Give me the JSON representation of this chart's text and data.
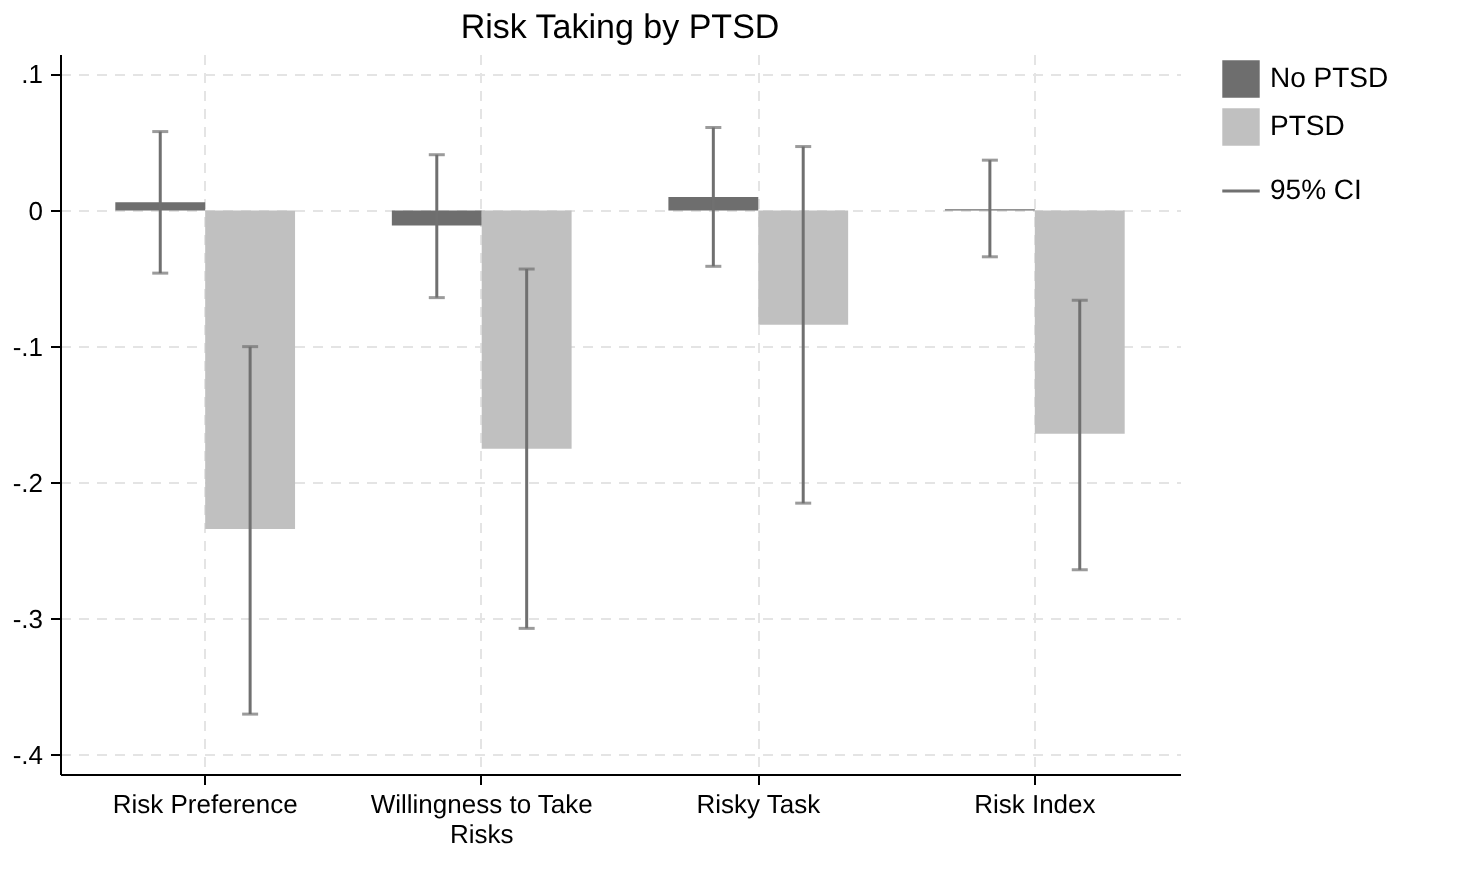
{
  "chart_data": {
    "type": "bar",
    "title": "Risk Taking by PTSD",
    "categories": [
      "Risk Preference",
      "Willingness to Take Risks",
      "Risky Task",
      "Risk Index"
    ],
    "series": [
      {
        "name": "No PTSD",
        "color": "#6e6e6e",
        "values": [
          0.006,
          -0.011,
          0.01,
          0.001
        ],
        "errors": [
          [
            -0.046,
            0.058
          ],
          [
            -0.064,
            0.041
          ],
          [
            -0.041,
            0.061
          ],
          [
            -0.034,
            0.037
          ]
        ]
      },
      {
        "name": "PTSD",
        "color": "#c0c0c0",
        "values": [
          -0.234,
          -0.175,
          -0.084,
          -0.164
        ],
        "errors": [
          [
            -0.37,
            -0.1
          ],
          [
            -0.307,
            -0.043
          ],
          [
            -0.215,
            0.047
          ],
          [
            -0.264,
            -0.066
          ]
        ]
      }
    ],
    "ylim": [
      -0.414,
      0.115
    ],
    "yticks": [
      {
        "value": 0.1,
        "label": ".1"
      },
      0,
      {
        "value": -0.1,
        "label": "-.1"
      },
      {
        "value": -0.2,
        "label": "-.2"
      },
      {
        "value": -0.3,
        "label": "-.3"
      },
      {
        "value": -0.4,
        "label": "-.4"
      }
    ],
    "annotations": [
      "95% CI"
    ],
    "grid": true,
    "legend": "right"
  }
}
